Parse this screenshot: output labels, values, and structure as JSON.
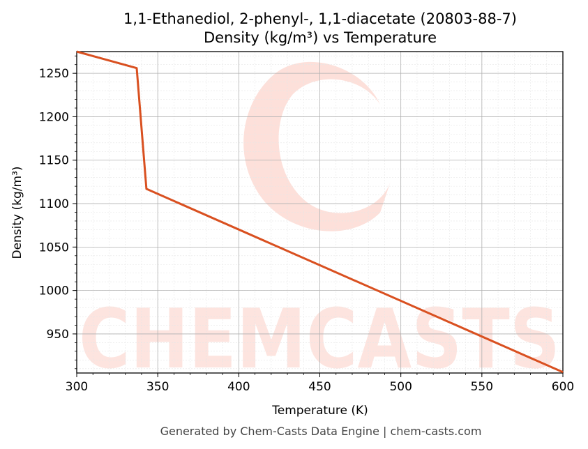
{
  "chart_data": {
    "type": "line",
    "title": "1,1-Ethanediol, 2-phenyl-, 1,1-diacetate (20803-88-7)",
    "subtitle": "Density (kg/m³) vs Temperature",
    "xlabel": "Temperature (K)",
    "ylabel": "Density (kg/m³)",
    "xlim": [
      300,
      600
    ],
    "ylim": [
      905,
      1275
    ],
    "xticks": [
      300,
      350,
      400,
      450,
      500,
      550,
      600
    ],
    "yticks": [
      950,
      1000,
      1050,
      1100,
      1150,
      1200,
      1250
    ],
    "grid": true,
    "series": [
      {
        "color": "#d95020",
        "x": [
          300,
          337,
          343,
          600
        ],
        "y": [
          1275,
          1256,
          1117,
          906
        ]
      }
    ]
  },
  "watermark": "CHEMCASTS",
  "footer": "Generated by Chem-Casts Data Engine | chem-casts.com"
}
